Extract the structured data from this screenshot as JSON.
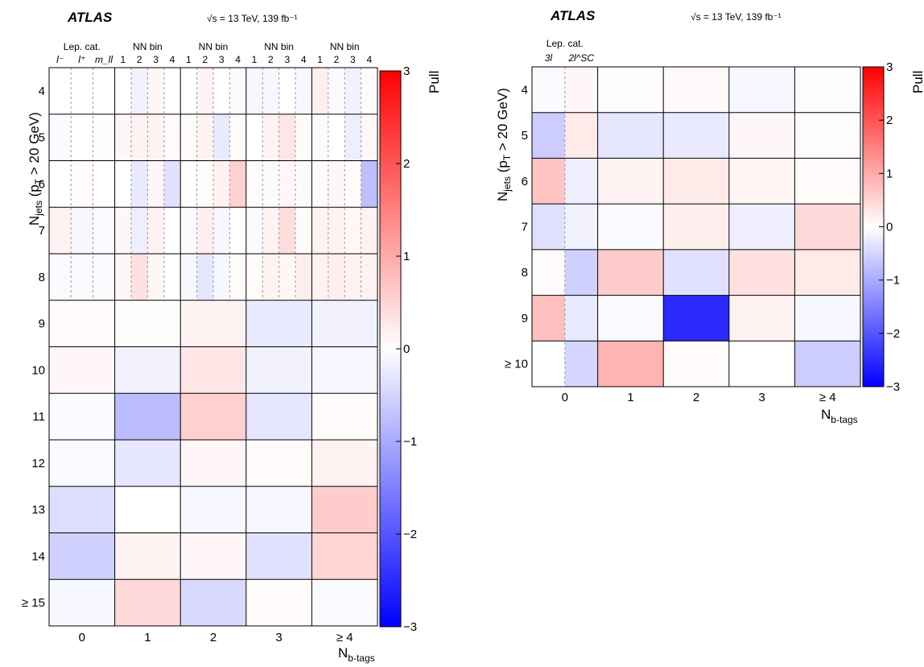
{
  "chart_data": [
    {
      "type": "heatmap",
      "experiment": "ATLAS",
      "energy_label": "√s = 13 TeV, 139 fb⁻¹",
      "xlabel": "N_b-tags",
      "ylabel": "N_jets (p_T > 20 GeV)",
      "zlabel": "Pull",
      "zlim": [
        -3,
        3
      ],
      "x_categories": [
        "0",
        "1",
        "2",
        "3",
        "≥ 4"
      ],
      "y_categories": [
        "4",
        "5",
        "6",
        "7",
        "8",
        "9",
        "10",
        "11",
        "12",
        "13",
        "14",
        "≥ 15"
      ],
      "colorbar_ticks": [
        "3",
        "2",
        "1",
        "0",
        "−1",
        "−2",
        "−3"
      ],
      "inset_header": {
        "lep_cat_label": "Lep. cat.",
        "lep_cat_sub": [
          "l⁻",
          "l⁺",
          "m_ll"
        ],
        "nn_label": "NN bin",
        "nn_sub": [
          "1",
          "2",
          "3",
          "4"
        ]
      },
      "fine_rows": {
        "4": [
          0.0,
          0.0,
          0.0,
          0.0,
          -0.15,
          0.1,
          0.0,
          0.0,
          0.15,
          0.0,
          -0.05,
          -0.1,
          -0.1,
          0.0,
          -0.1,
          0.2,
          -0.05,
          -0.15,
          0.05
        ],
        "5": [
          -0.05,
          0.0,
          -0.02,
          0.1,
          0.15,
          0.15,
          0.05,
          0.05,
          0.15,
          -0.25,
          0.05,
          0.0,
          0.15,
          0.3,
          0.05,
          -0.05,
          0.0,
          -0.2,
          0.1
        ],
        "6": [
          0.0,
          0.05,
          0.0,
          0.0,
          -0.25,
          0.1,
          -0.35,
          0.0,
          0.05,
          0.15,
          0.55,
          0.05,
          -0.05,
          0.1,
          -0.05,
          0.05,
          0.1,
          0.05,
          -0.75
        ],
        "7": [
          0.15,
          -0.1,
          -0.05,
          0.1,
          -0.2,
          0.15,
          0.0,
          -0.05,
          0.2,
          -0.1,
          0.0,
          -0.05,
          0.15,
          0.4,
          0.05,
          0.15,
          0.15,
          0.1,
          0.15
        ],
        "8": [
          -0.05,
          -0.05,
          -0.05,
          0.1,
          0.35,
          0.1,
          0.0,
          -0.1,
          -0.3,
          -0.1,
          0.05,
          0.05,
          0.15,
          0.1,
          0.2,
          0.15,
          0.2,
          0.15,
          0.15
        ]
      },
      "coarse_rows": {
        "9": [
          0.05,
          0.03,
          0.15,
          -0.25,
          -0.15
        ],
        "10": [
          0.1,
          -0.15,
          0.3,
          -0.15,
          -0.1
        ],
        "11": [
          -0.05,
          -0.8,
          0.55,
          -0.3,
          0.05
        ],
        "12": [
          -0.05,
          -0.3,
          0.1,
          0.05,
          0.15
        ],
        "13": [
          -0.4,
          0.0,
          -0.1,
          -0.1,
          0.6
        ],
        "14": [
          -0.55,
          0.15,
          0.1,
          -0.35,
          0.5
        ],
        "≥ 15": [
          -0.1,
          0.45,
          -0.45,
          0.05,
          -0.05
        ]
      }
    },
    {
      "type": "heatmap",
      "experiment": "ATLAS",
      "energy_label": "√s = 13 TeV, 139 fb⁻¹",
      "xlabel": "N_b-tags",
      "ylabel": "N_jets (p_T > 20 GeV)",
      "zlabel": "Pull",
      "zlim": [
        -3,
        3
      ],
      "x_categories": [
        "0",
        "1",
        "2",
        "3",
        "≥ 4"
      ],
      "y_categories": [
        "4",
        "5",
        "6",
        "7",
        "8",
        "9",
        "≥ 10"
      ],
      "colorbar_ticks": [
        "3",
        "2",
        "1",
        "0",
        "−1",
        "−2",
        "−3"
      ],
      "inset_header": {
        "lep_cat_label": "Lep. cat.",
        "lep_cat_sub": [
          "3l",
          "2l^SC"
        ]
      },
      "rows": {
        "4": [
          -0.05,
          0.1,
          -0.02,
          0.07,
          -0.1,
          -0.02
        ],
        "5": [
          -0.6,
          0.25,
          -0.3,
          -0.25,
          0.1,
          0.03
        ],
        "6": [
          0.7,
          -0.2,
          0.15,
          0.25,
          0.12,
          0.05
        ],
        "7": [
          -0.35,
          -0.15,
          -0.05,
          0.2,
          -0.2,
          0.45
        ],
        "8": [
          0.05,
          -0.55,
          0.6,
          -0.35,
          0.35,
          0.25
        ],
        "9": [
          0.75,
          -0.25,
          -0.05,
          -2.5,
          0.15,
          -0.1
        ],
        "≥ 10": [
          0.0,
          -0.5,
          0.9,
          0.05,
          0.0,
          -0.6
        ]
      }
    }
  ]
}
